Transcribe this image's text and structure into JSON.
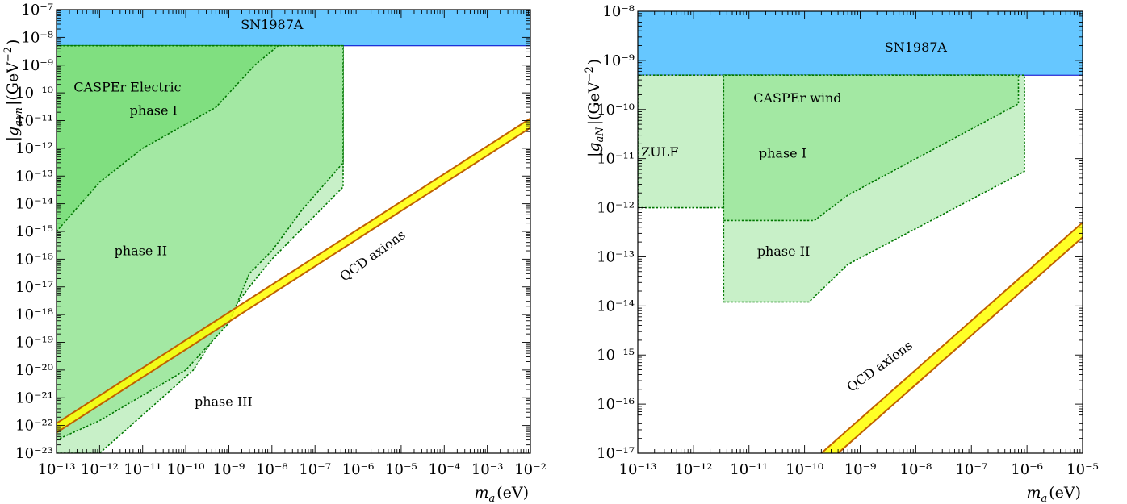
{
  "chart_data": [
    {
      "type": "area",
      "xscale": "log",
      "yscale": "log",
      "xlim": [
        1e-13,
        0.01
      ],
      "ylim": [
        1e-23,
        1e-07
      ],
      "xlabel": "m_a(eV)",
      "ylabel": "|g_{aγn}|(GeV^{-2})",
      "x_ticks": [
        -13,
        -12,
        -11,
        -10,
        -9,
        -8,
        -7,
        -6,
        -5,
        -4,
        -3,
        -2
      ],
      "y_ticks": [
        -23,
        -22,
        -21,
        -20,
        -19,
        -18,
        -17,
        -16,
        -15,
        -14,
        -13,
        -12,
        -11,
        -10,
        -9,
        -8,
        -7
      ],
      "regions": [
        {
          "label": "SN1987A",
          "color": "#66c7ff",
          "edge": "#0000cc",
          "points": [
            [
              1e-13,
              5e-09
            ],
            [
              0.01,
              5e-09
            ],
            [
              0.01,
              1e-07
            ],
            [
              1e-13,
              1e-07
            ]
          ]
        },
        {
          "label": "phase III",
          "color": "#c8f0c8",
          "edge": "#007700",
          "dashed": true,
          "points": [
            [
              1e-13,
              1e-23
            ],
            [
              1e-12,
              1e-23
            ],
            [
              1.5e-10,
              1e-20
            ],
            [
              1e-09,
              1e-18
            ],
            [
              3e-09,
              1e-17
            ],
            [
              1e-08,
              1e-16
            ],
            [
              4.5e-07,
              4e-14
            ],
            [
              4.5e-07,
              5e-09
            ],
            [
              1e-13,
              5e-09
            ]
          ]
        },
        {
          "label": "phase II",
          "color": "#a3e8a3",
          "edge": "#007700",
          "dashed": true,
          "points": [
            [
              1e-13,
              3e-23
            ],
            [
              1e-12,
              1.5e-22
            ],
            [
              1e-10,
              1e-20
            ],
            [
              1e-09,
              5e-19
            ],
            [
              3e-09,
              3e-17
            ],
            [
              1e-08,
              2e-16
            ],
            [
              5e-08,
              6e-15
            ],
            [
              4.5e-07,
              3e-13
            ],
            [
              4.5e-07,
              5e-09
            ],
            [
              1e-13,
              5e-09
            ]
          ]
        },
        {
          "label": "phase I",
          "color": "#80df80",
          "edge": "#007700",
          "dashed": true,
          "points": [
            [
              1e-13,
              1e-15
            ],
            [
              1e-12,
              6e-14
            ],
            [
              1e-11,
              1e-12
            ],
            [
              5e-10,
              3e-11
            ],
            [
              4e-09,
              1e-09
            ],
            [
              1.4e-08,
              5e-09
            ],
            [
              1e-13,
              5e-09
            ]
          ]
        }
      ],
      "band": {
        "label": "QCD axions",
        "color": "#ffff00",
        "edge": "#c06000",
        "lower": [
          [
            1e-13,
            5.5e-23
          ],
          [
            0.01,
            5.5e-12
          ]
        ],
        "upper": [
          [
            1e-13,
            1.2e-22
          ],
          [
            0.01,
            1.2e-11
          ]
        ]
      },
      "annotations": [
        {
          "text": "SN1987A",
          "x": 1e-08,
          "y": 2e-08,
          "anchor": "middle"
        },
        {
          "text": "CASPEr Electric",
          "x": 2.5e-13,
          "y": 1.1e-10,
          "anchor": "start"
        },
        {
          "text": "phase I",
          "x": 5e-12,
          "y": 1.6e-11,
          "anchor": "start"
        },
        {
          "text": "phase II",
          "x": 2.2e-12,
          "y": 1.4e-16,
          "anchor": "start"
        },
        {
          "text": "phase III",
          "x": 1.6e-10,
          "y": 5e-22,
          "anchor": "start"
        },
        {
          "text": "QCD axions",
          "x": 2.5e-06,
          "y": 1e-16,
          "anchor": "middle",
          "rotate": -36
        }
      ]
    },
    {
      "type": "area",
      "xscale": "log",
      "yscale": "log",
      "xlim": [
        1e-13,
        1e-05
      ],
      "ylim": [
        1e-17,
        1e-08
      ],
      "xlabel": "m_a(eV)",
      "ylabel": "|g_{aN}|(GeV^{-2})",
      "x_ticks": [
        -13,
        -12,
        -11,
        -10,
        -9,
        -8,
        -7,
        -6,
        -5
      ],
      "y_ticks": [
        -17,
        -16,
        -15,
        -14,
        -13,
        -12,
        -11,
        -10,
        -9,
        -8
      ],
      "regions": [
        {
          "label": "SN1987A",
          "color": "#66c7ff",
          "edge": "#0000cc",
          "points": [
            [
              1e-13,
              5e-10
            ],
            [
              1e-05,
              5e-10
            ],
            [
              1e-05,
              1e-08
            ],
            [
              1e-13,
              1e-08
            ]
          ]
        },
        {
          "label": "ZULF",
          "color": "#c8f0c8",
          "edge": "#007700",
          "dashed": true,
          "points": [
            [
              1e-13,
              1e-12
            ],
            [
              3.5e-12,
              1e-12
            ],
            [
              3.5e-12,
              5e-10
            ],
            [
              1e-13,
              5e-10
            ]
          ]
        },
        {
          "label": "phase II",
          "color": "#c8f0c8",
          "edge": "#007700",
          "dashed": true,
          "points": [
            [
              3.5e-12,
              1.2e-14
            ],
            [
              1.2e-10,
              1.2e-14
            ],
            [
              6e-10,
              7e-14
            ],
            [
              9e-07,
              5.5e-12
            ],
            [
              9e-07,
              5e-10
            ],
            [
              3.5e-12,
              5e-10
            ]
          ]
        },
        {
          "label": "phase I",
          "color": "#a3e8a3",
          "edge": "#007700",
          "dashed": true,
          "points": [
            [
              3.5e-12,
              5.5e-13
            ],
            [
              1.5e-10,
              5.5e-13
            ],
            [
              6e-10,
              1.8e-12
            ],
            [
              7e-07,
              1.3e-10
            ],
            [
              7e-07,
              5e-10
            ],
            [
              3.5e-12,
              5e-10
            ]
          ]
        }
      ],
      "band": {
        "label": "QCD axions",
        "color": "#ffff00",
        "edge": "#c06000",
        "lower": [
          [
            4e-10,
            1e-17
          ],
          [
            1e-05,
            2.5e-13
          ]
        ],
        "upper": [
          [
            2e-10,
            1e-17
          ],
          [
            1e-05,
            5e-13
          ]
        ]
      },
      "annotations": [
        {
          "text": "SN1987A",
          "x": 1e-08,
          "y": 1.5e-09,
          "anchor": "middle"
        },
        {
          "text": "CASPEr wind",
          "x": 1.2e-11,
          "y": 1.4e-10,
          "anchor": "start"
        },
        {
          "text": "ZULF",
          "x": 1.15e-13,
          "y": 1.1e-11,
          "anchor": "start"
        },
        {
          "text": "phase I",
          "x": 1.5e-11,
          "y": 1.05e-11,
          "anchor": "start"
        },
        {
          "text": "phase II",
          "x": 1.4e-11,
          "y": 1.05e-13,
          "anchor": "start"
        },
        {
          "text": "QCD axions",
          "x": 2.5e-09,
          "y": 5e-16,
          "anchor": "middle",
          "rotate": -36
        }
      ]
    }
  ]
}
